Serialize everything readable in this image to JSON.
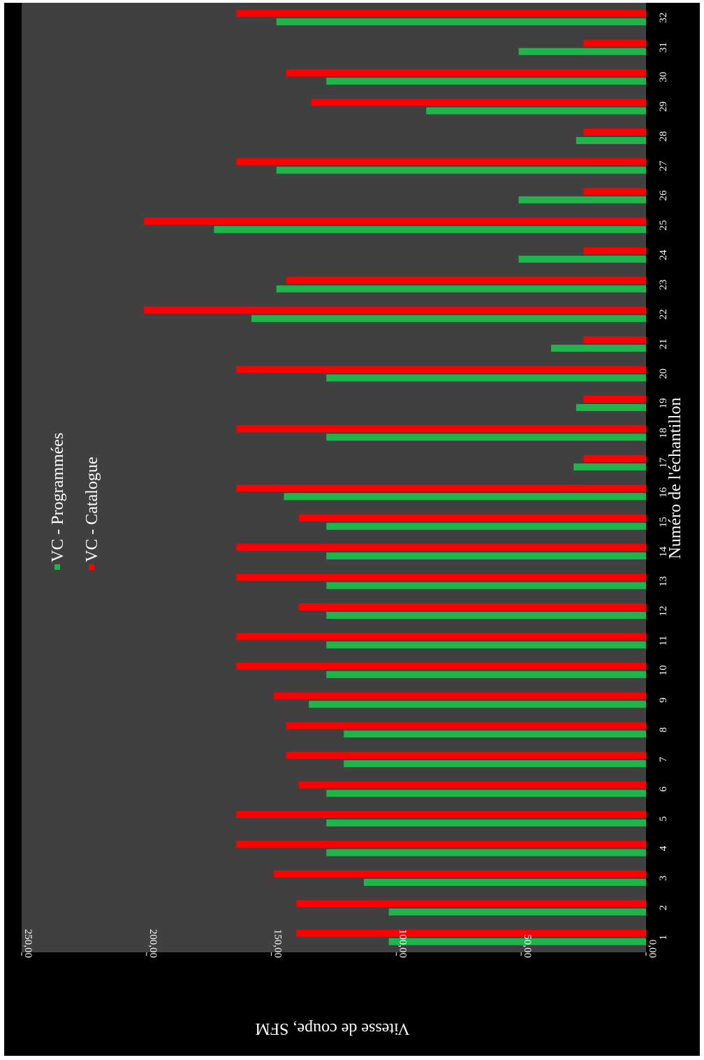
{
  "chart_data": {
    "type": "bar",
    "orientation": "horizontal",
    "rotation": "90deg-clockwise",
    "xlabel": "Numéro de l'échantillon",
    "ylabel": "Vitesse de coupe, SFM",
    "ylim": [
      0,
      250
    ],
    "yticks": [
      "0,00",
      "50,00",
      "100,00",
      "150,00",
      "200,00",
      "250,00"
    ],
    "categories": [
      "1",
      "2",
      "3",
      "4",
      "5",
      "6",
      "7",
      "8",
      "9",
      "10",
      "11",
      "12",
      "13",
      "14",
      "15",
      "16",
      "17",
      "18",
      "19",
      "20",
      "21",
      "22",
      "23",
      "24",
      "25",
      "26",
      "27",
      "28",
      "29",
      "30",
      "31",
      "32"
    ],
    "series": [
      {
        "name": "VC - Programmées",
        "color": "#1fb54a",
        "values": [
          103,
          103,
          113,
          128,
          128,
          128,
          121,
          121,
          135,
          128,
          128,
          128,
          128,
          128,
          128,
          145,
          29,
          128,
          28,
          128,
          38,
          158,
          148,
          51,
          173,
          51,
          148,
          28,
          88,
          128,
          51,
          148
        ]
      },
      {
        "name": "VC - Catalogue",
        "color": "#ff0000",
        "values": [
          140,
          140,
          149,
          164,
          164,
          139,
          144,
          144,
          149,
          164,
          164,
          139,
          164,
          164,
          139,
          164,
          25,
          164,
          25,
          164,
          25,
          201,
          144,
          25,
          201,
          25,
          164,
          25,
          134,
          144,
          25,
          164
        ]
      }
    ],
    "grid": false,
    "legend_position": "top-left",
    "plot_background": "#404040",
    "figure_background": "#000000"
  }
}
